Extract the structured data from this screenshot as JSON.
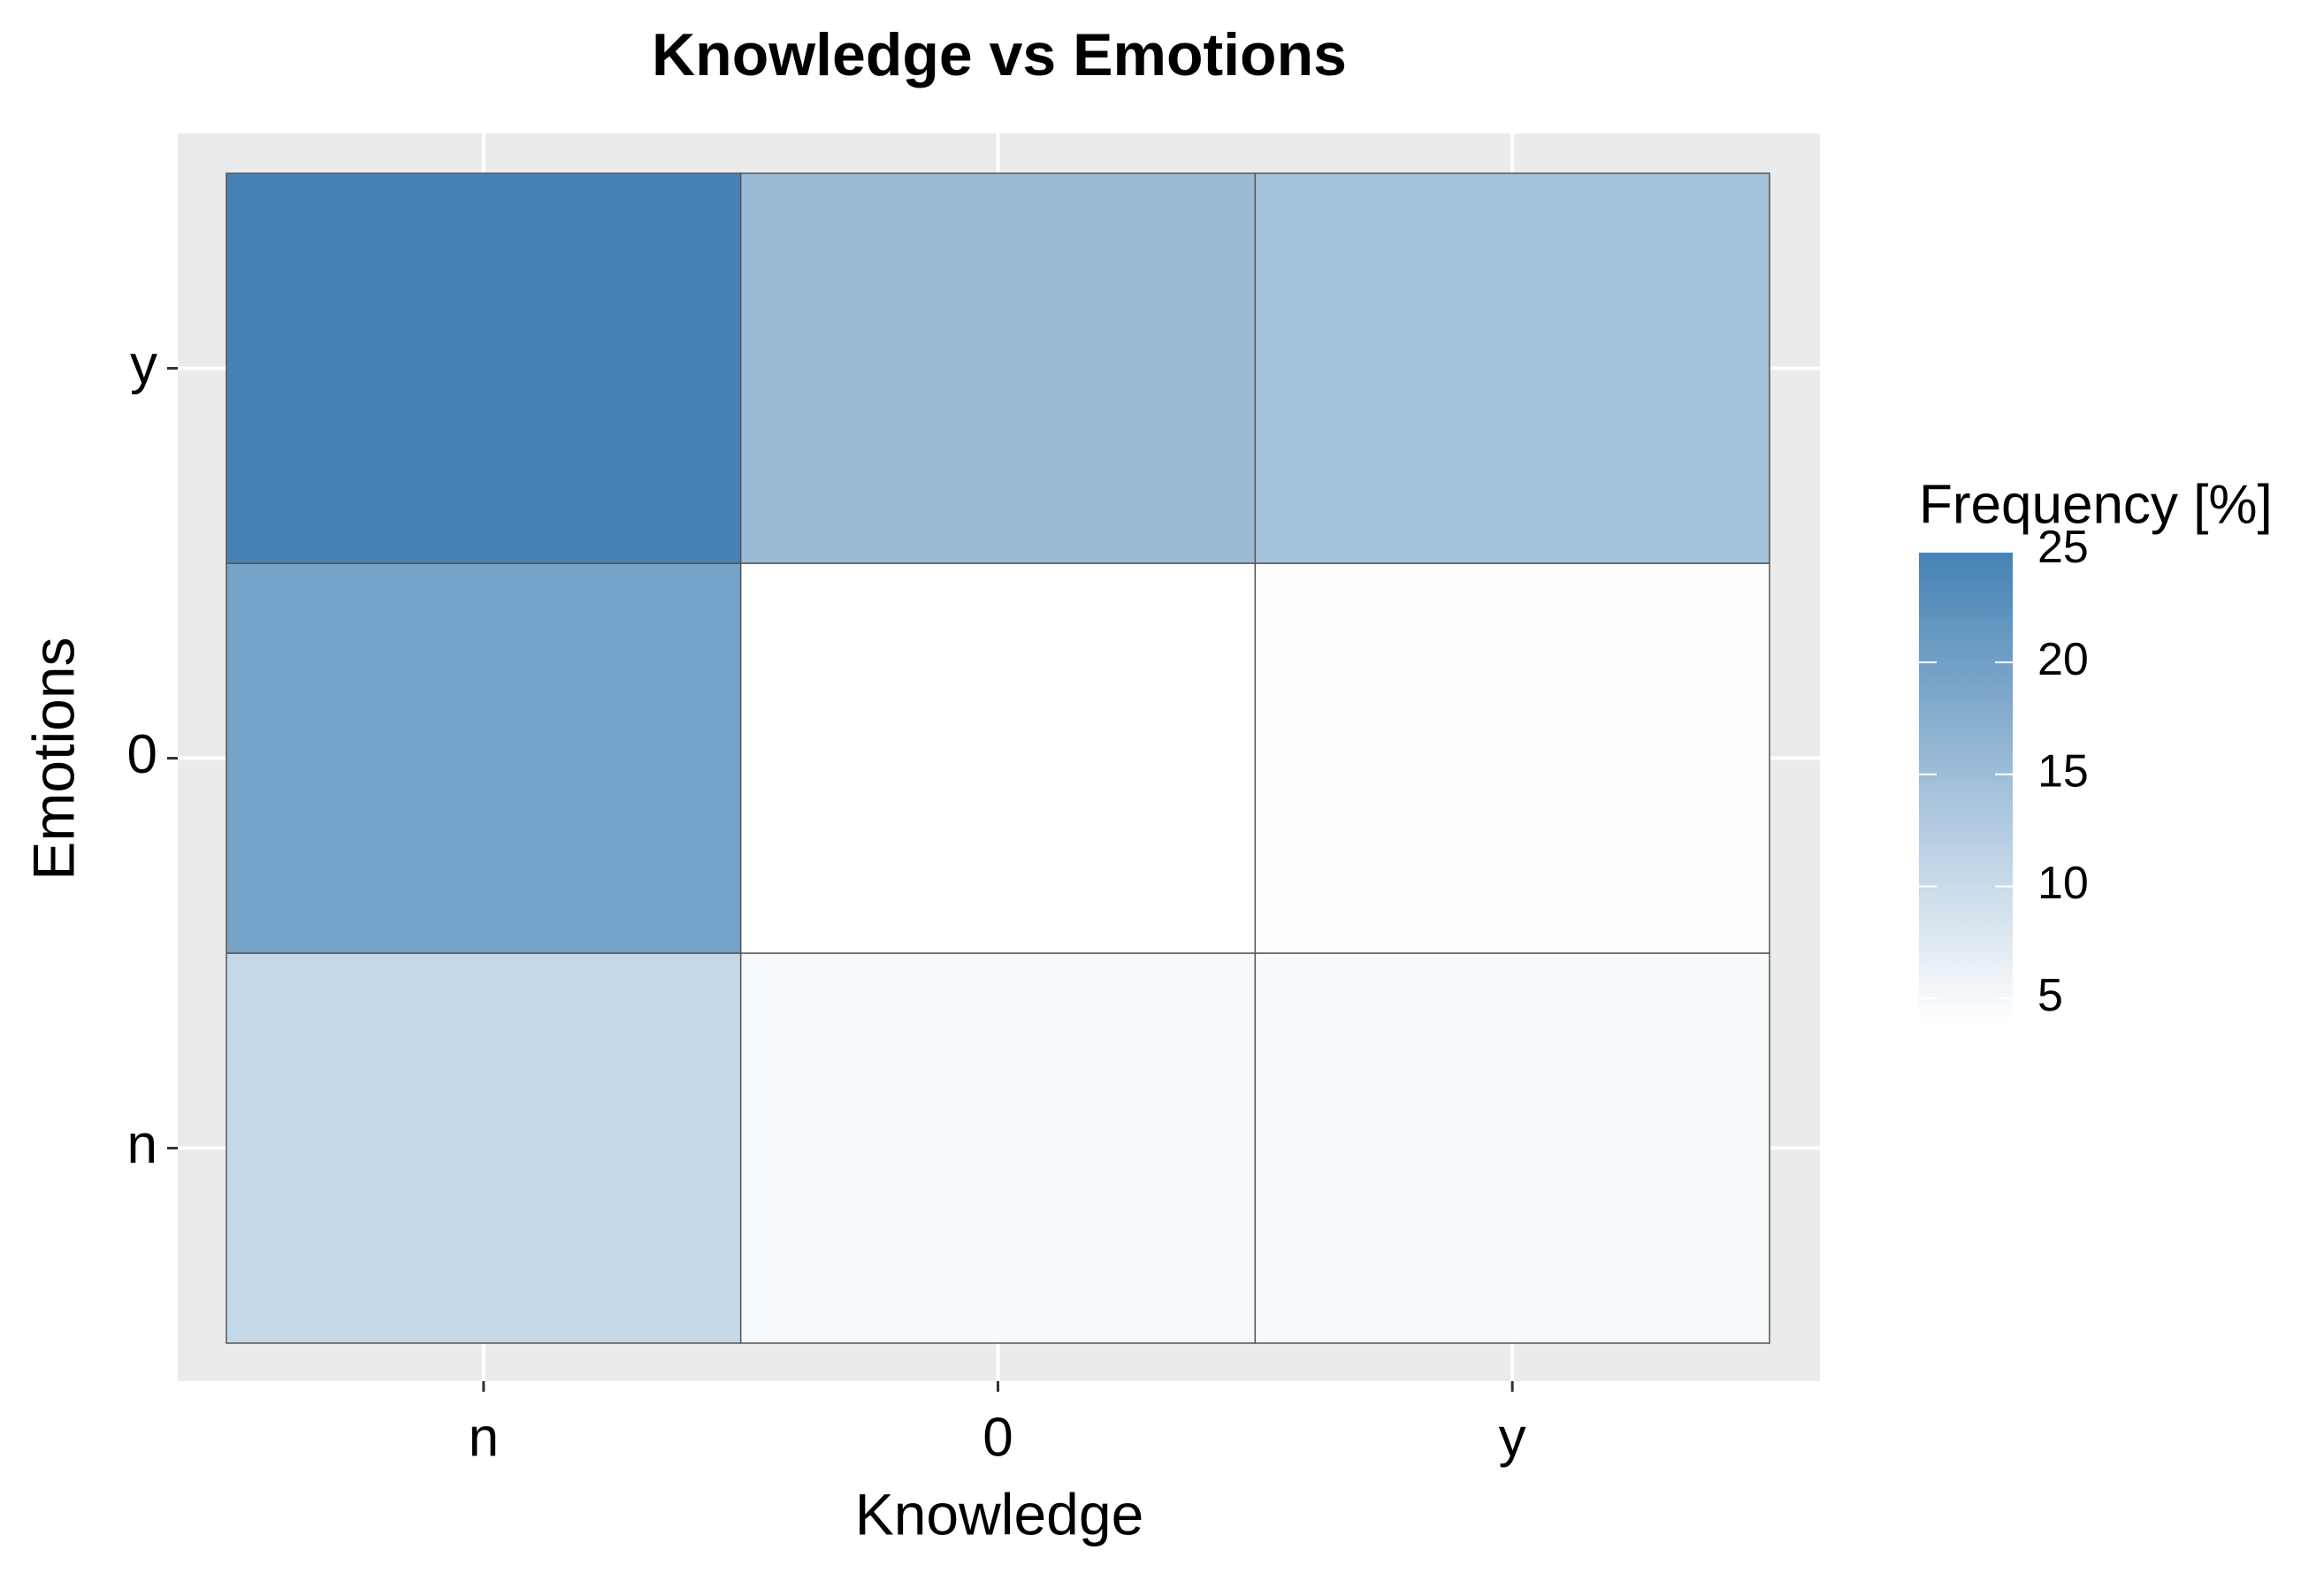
{
  "chart_data": {
    "type": "heatmap",
    "title": "Knowledge vs Emotions",
    "x_label": "Knowledge",
    "y_label": "Emotions",
    "x_categories": [
      "n",
      "0",
      "y"
    ],
    "y_categories": [
      "n",
      "0",
      "y"
    ],
    "values": [
      [
        10.5,
        4.8,
        4.8
      ],
      [
        19.6,
        3.9,
        4.0
      ],
      [
        24.9,
        15.4,
        14.1
      ]
    ],
    "legend_title": "Frequency [%]",
    "clim": [
      3.9,
      24.9
    ],
    "colorbar_ticks": [
      5,
      10,
      15,
      20,
      25
    ],
    "colors": [
      "#ffffff",
      "#4682b4"
    ]
  }
}
